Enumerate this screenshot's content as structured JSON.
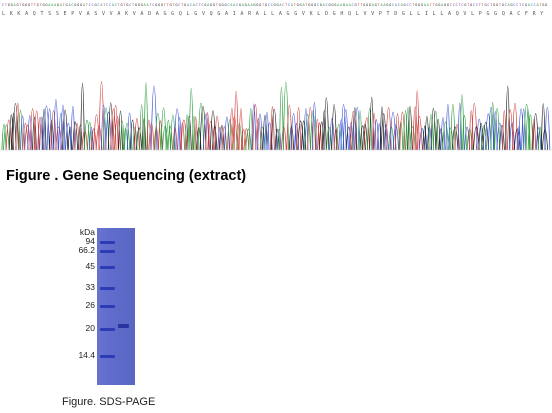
{
  "sequence": {
    "bases": "CTGGAGTGGGTTGTGGAAAGATGACGGGATCCGCATCCACTGTGCTGGGAATCGGGTTGTGCTGACACTCGAGGTGGGCAACGAGAAGGGTGCCGGACTCATGGATGGGCGACGGGAAGAACGTTGGGAGTAAGGCACAGCCTGGGAATTGGAGGTCCTCGTGCCTTGCTGGTGCAGCCTCGACCATGG",
    "amino_acids": "L K K A Q T S S E P V A S V V A K V A D A G G Q L G V Q G A I A R A L L A G G V K L D G H Q L V V P T D G L L I L L A Q V L P G G Q A C F R Y",
    "base_colors": {
      "A": "#2e9e3e",
      "C": "#3a52d6",
      "G": "#222222",
      "T": "#d23a3a"
    }
  },
  "gene_figure": {
    "title": "Figure . Gene Sequencing (extract)"
  },
  "sds_page": {
    "unit_label": "kDa",
    "markers": [
      {
        "label": "94",
        "kda": 94
      },
      {
        "label": "66.2",
        "kda": 66.2
      },
      {
        "label": "45",
        "kda": 45
      },
      {
        "label": "33",
        "kda": 33
      },
      {
        "label": "26",
        "kda": 26
      },
      {
        "label": "20",
        "kda": 20
      },
      {
        "label": "14.4",
        "kda": 14.4
      }
    ],
    "caption": "Figure. SDS-PAGE",
    "gel_color": "#5f6ccc",
    "band_color": "#2c3cb4"
  }
}
